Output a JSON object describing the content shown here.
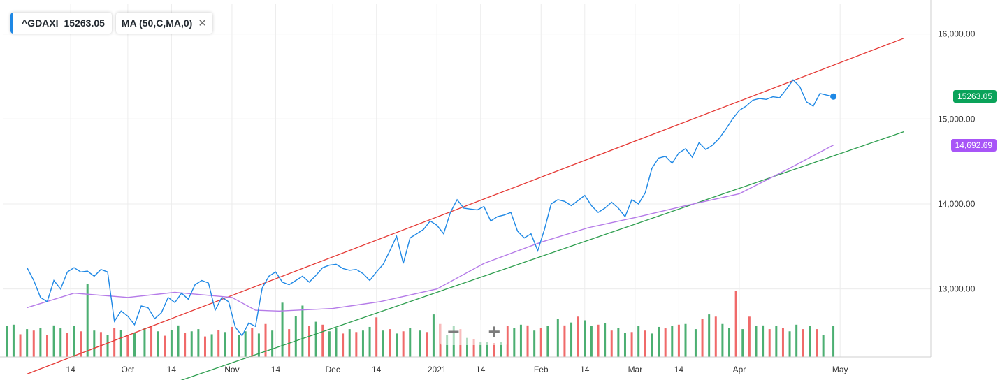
{
  "legend": {
    "symbol": "^GDAXI",
    "last_price": "15263.05",
    "indicator": "MA (50,C,MA,0)",
    "close_glyph": "✕"
  },
  "zoom": {
    "minus": "−",
    "plus": "+"
  },
  "tags": {
    "price": "15263.05",
    "ma": "14,692.69",
    "price_color": "#0aa35a",
    "ma_color": "#a855f7"
  },
  "colors": {
    "price_line": "#1e88e5",
    "ma_line": "#b57be8",
    "upper_trend": "#e53935",
    "lower_trend": "#2e9e4f",
    "vol_up": "#4caf72",
    "vol_down": "#f06a6a",
    "grid": "#ececec"
  },
  "chart_data": {
    "type": "line",
    "x_tick_labels": [
      "14",
      "Oct",
      "14",
      "Nov",
      "14",
      "Dec",
      "14",
      "2021",
      "14",
      "Feb",
      "14",
      "Mar",
      "14",
      "Apr",
      "May"
    ],
    "x_tick_dates": [
      "2020-09-14",
      "2020-10-01",
      "2020-10-14",
      "2020-11-01",
      "2020-11-14",
      "2020-12-01",
      "2020-12-14",
      "2021-01-01",
      "2021-01-14",
      "2021-02-01",
      "2021-02-14",
      "2021-03-01",
      "2021-03-14",
      "2021-04-01",
      "2021-05-01"
    ],
    "y_ticks": [
      13000,
      14000,
      15000,
      16000
    ],
    "y_tick_labels": [
      "13,000.00",
      "14,000.00",
      "15,000.00",
      "16,000.00"
    ],
    "ylim": [
      12200,
      16350
    ],
    "grid": true,
    "series": [
      {
        "name": "^GDAXI",
        "dates": [
          "2020-09-01",
          "2020-09-03",
          "2020-09-05",
          "2020-09-07",
          "2020-09-09",
          "2020-09-11",
          "2020-09-13",
          "2020-09-15",
          "2020-09-17",
          "2020-09-19",
          "2020-09-21",
          "2020-09-23",
          "2020-09-25",
          "2020-09-27",
          "2020-09-29",
          "2020-10-01",
          "2020-10-03",
          "2020-10-05",
          "2020-10-07",
          "2020-10-09",
          "2020-10-11",
          "2020-10-13",
          "2020-10-15",
          "2020-10-17",
          "2020-10-19",
          "2020-10-21",
          "2020-10-23",
          "2020-10-25",
          "2020-10-27",
          "2020-10-29",
          "2020-10-31",
          "2020-11-02",
          "2020-11-04",
          "2020-11-06",
          "2020-11-08",
          "2020-11-10",
          "2020-11-12",
          "2020-11-14",
          "2020-11-16",
          "2020-11-18",
          "2020-11-20",
          "2020-11-22",
          "2020-11-24",
          "2020-11-26",
          "2020-11-28",
          "2020-11-30",
          "2020-12-02",
          "2020-12-04",
          "2020-12-06",
          "2020-12-08",
          "2020-12-10",
          "2020-12-12",
          "2020-12-14",
          "2020-12-16",
          "2020-12-18",
          "2020-12-20",
          "2020-12-22",
          "2020-12-24",
          "2020-12-26",
          "2020-12-28",
          "2020-12-30",
          "2021-01-01",
          "2021-01-03",
          "2021-01-05",
          "2021-01-07",
          "2021-01-09",
          "2021-01-11",
          "2021-01-13",
          "2021-01-15",
          "2021-01-17",
          "2021-01-19",
          "2021-01-21",
          "2021-01-23",
          "2021-01-25",
          "2021-01-27",
          "2021-01-29",
          "2021-01-31",
          "2021-02-02",
          "2021-02-04",
          "2021-02-06",
          "2021-02-08",
          "2021-02-10",
          "2021-02-12",
          "2021-02-14",
          "2021-02-16",
          "2021-02-18",
          "2021-02-20",
          "2021-02-22",
          "2021-02-24",
          "2021-02-26",
          "2021-02-28",
          "2021-03-02",
          "2021-03-04",
          "2021-03-06",
          "2021-03-08",
          "2021-03-10",
          "2021-03-12",
          "2021-03-14",
          "2021-03-16",
          "2021-03-18",
          "2021-03-20",
          "2021-03-22",
          "2021-03-24",
          "2021-03-26",
          "2021-03-28",
          "2021-03-30",
          "2021-04-01",
          "2021-04-03",
          "2021-04-05",
          "2021-04-07",
          "2021-04-09",
          "2021-04-11",
          "2021-04-13",
          "2021-04-15",
          "2021-04-17",
          "2021-04-19",
          "2021-04-21",
          "2021-04-23",
          "2021-04-25",
          "2021-04-27",
          "2021-04-29"
        ],
        "values": [
          13250,
          13100,
          12900,
          12850,
          13100,
          13000,
          13200,
          13250,
          13200,
          13210,
          13150,
          13230,
          13200,
          12620,
          12740,
          12680,
          12580,
          12800,
          12780,
          12650,
          12720,
          12900,
          12840,
          12950,
          12880,
          13050,
          13100,
          13070,
          12750,
          12900,
          12850,
          12550,
          12450,
          12600,
          12560,
          13010,
          13150,
          13200,
          13080,
          13050,
          13100,
          13150,
          13080,
          13160,
          13250,
          13280,
          13290,
          13240,
          13220,
          13230,
          13180,
          13100,
          13200,
          13290,
          13450,
          13620,
          13300,
          13600,
          13650,
          13700,
          13800,
          13750,
          13650,
          13900,
          14050,
          13950,
          13940,
          13930,
          13970,
          13800,
          13850,
          13870,
          13900,
          13680,
          13600,
          13650,
          13450,
          13700,
          14000,
          14050,
          14030,
          13980,
          14040,
          14100,
          13980,
          13900,
          13950,
          14020,
          13950,
          13850,
          14050,
          14000,
          14130,
          14420,
          14540,
          14560,
          14480,
          14600,
          14650,
          14550,
          14720,
          14640,
          14690,
          14770,
          14880,
          15000,
          15100,
          15150,
          15220,
          15240,
          15230,
          15260,
          15250,
          15350,
          15460,
          15380,
          15200,
          15150,
          15300,
          15280,
          15263
        ]
      },
      {
        "name": "MA (50,C,MA,0)",
        "dates": [
          "2020-09-01",
          "2020-09-15",
          "2020-10-01",
          "2020-10-15",
          "2020-11-01",
          "2020-11-08",
          "2020-11-15",
          "2020-12-01",
          "2020-12-15",
          "2021-01-01",
          "2021-01-15",
          "2021-02-01",
          "2021-02-15",
          "2021-03-01",
          "2021-03-15",
          "2021-04-01",
          "2021-04-15",
          "2021-04-29"
        ],
        "values": [
          12780,
          12950,
          12900,
          12960,
          12900,
          12750,
          12740,
          12770,
          12850,
          13000,
          13300,
          13550,
          13720,
          13840,
          13970,
          14120,
          14400,
          14692.69
        ]
      }
    ],
    "volume": {
      "direction": [
        "up",
        "up",
        "down",
        "up",
        "down",
        "up",
        "down",
        "up",
        "up",
        "down",
        "up",
        "down",
        "up",
        "up",
        "down",
        "up",
        "down",
        "up",
        "down",
        "up",
        "up",
        "down",
        "up",
        "down",
        "up",
        "up",
        "down",
        "up",
        "up",
        "down",
        "up",
        "down",
        "up",
        "down",
        "up",
        "up",
        "down",
        "up",
        "down",
        "up",
        "up",
        "down",
        "up",
        "up",
        "down",
        "up",
        "down",
        "up",
        "up",
        "down",
        "up",
        "down",
        "up",
        "up",
        "down",
        "up",
        "down",
        "up",
        "down",
        "up",
        "up",
        "down",
        "up",
        "down",
        "up",
        "up",
        "down",
        "up",
        "down",
        "up",
        "up",
        "down",
        "up",
        "down",
        "up",
        "up",
        "down",
        "up",
        "down",
        "up",
        "up",
        "down",
        "up",
        "down",
        "up",
        "up",
        "down",
        "up",
        "down",
        "up",
        "up",
        "down",
        "up",
        "down",
        "up",
        "up",
        "down",
        "up",
        "down",
        "up",
        "up",
        "down",
        "up",
        "down",
        "up",
        "up",
        "down",
        "up",
        "down",
        "up",
        "up",
        "down",
        "up",
        "down",
        "up",
        "up",
        "down",
        "up",
        "down",
        "up",
        "up"
      ],
      "relative_height": [
        0.42,
        0.44,
        0.31,
        0.38,
        0.36,
        0.4,
        0.3,
        0.43,
        0.39,
        0.33,
        0.42,
        0.35,
        1.0,
        0.36,
        0.34,
        0.3,
        0.4,
        0.37,
        0.3,
        0.33,
        0.4,
        0.42,
        0.35,
        0.29,
        0.37,
        0.43,
        0.33,
        0.35,
        0.38,
        0.28,
        0.31,
        0.37,
        0.34,
        0.41,
        0.3,
        0.35,
        0.4,
        0.32,
        0.45,
        0.36,
        0.74,
        0.38,
        0.56,
        0.7,
        0.42,
        0.48,
        0.44,
        0.35,
        0.4,
        0.32,
        0.38,
        0.34,
        0.36,
        0.41,
        0.54,
        0.36,
        0.38,
        0.32,
        0.35,
        0.4,
        0.36,
        0.34,
        0.58,
        0.45,
        0.3,
        0.42,
        0.38,
        0.26,
        0.24,
        0.21,
        0.2,
        0.19,
        0.2,
        0.42,
        0.4,
        0.44,
        0.43,
        0.36,
        0.4,
        0.42,
        0.52,
        0.43,
        0.47,
        0.55,
        0.5,
        0.42,
        0.44,
        0.46,
        0.36,
        0.4,
        0.33,
        0.34,
        0.42,
        0.36,
        0.32,
        0.41,
        0.39,
        0.42,
        0.44,
        0.45,
        0.38,
        0.52,
        0.58,
        0.55,
        0.45,
        0.4,
        0.9,
        0.38,
        0.55,
        0.42,
        0.43,
        0.38,
        0.42,
        0.4,
        0.35,
        0.44,
        0.38,
        0.42,
        0.38,
        0.3,
        0.42
      ]
    },
    "trendlines": [
      {
        "name": "upper",
        "from": [
          "2020-09-01",
          12000
        ],
        "to": [
          "2021-05-20",
          15950
        ]
      },
      {
        "name": "lower",
        "from": [
          "2020-10-15",
          11900
        ],
        "to": [
          "2021-05-20",
          14850
        ]
      }
    ]
  }
}
